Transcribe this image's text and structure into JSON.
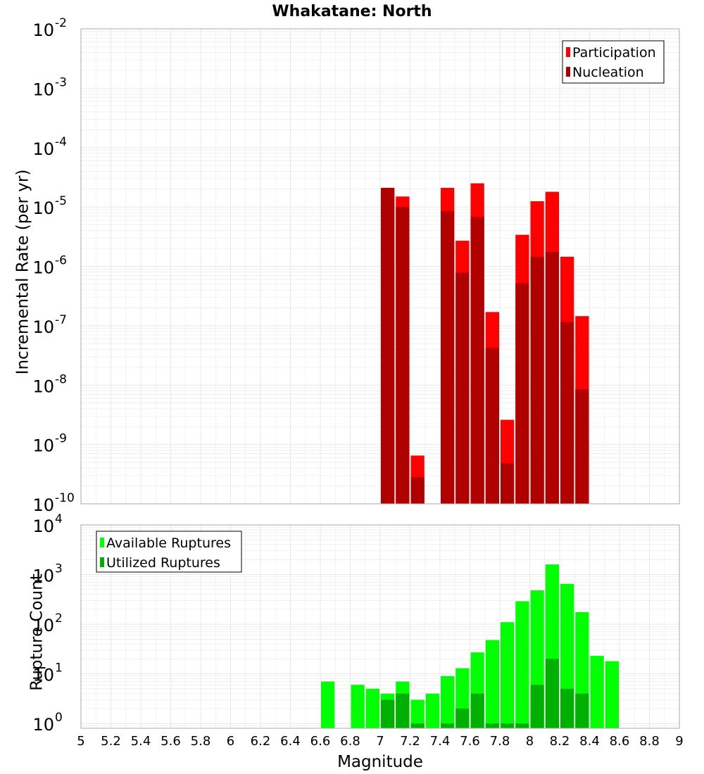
{
  "title": "Whakatane: North",
  "x_axis": {
    "label": "Magnitude",
    "range": [
      5,
      9
    ],
    "ticks": [
      "5",
      "5.2",
      "5.4",
      "5.6",
      "5.8",
      "6",
      "6.2",
      "6.4",
      "6.6",
      "6.8",
      "7",
      "7.2",
      "7.4",
      "7.6",
      "7.8",
      "8",
      "8.2",
      "8.4",
      "8.6",
      "8.8",
      "9"
    ]
  },
  "colors": {
    "participation": "#ff0000",
    "nucleation": "#b00000",
    "available": "#00ff00",
    "utilized": "#00b000",
    "grid": "#e8e8e8",
    "frame": "#aaaaaa"
  },
  "chart_data": [
    {
      "type": "bar",
      "ylabel": "Incremental Rate (per yr)",
      "yscale": "log",
      "ylim": [
        1e-10,
        0.01
      ],
      "y_ticks": [
        {
          "base": "10",
          "exp": "-10"
        },
        {
          "base": "10",
          "exp": "-9"
        },
        {
          "base": "10",
          "exp": "-8"
        },
        {
          "base": "10",
          "exp": "-7"
        },
        {
          "base": "10",
          "exp": "-6"
        },
        {
          "base": "10",
          "exp": "-5"
        },
        {
          "base": "10",
          "exp": "-4"
        },
        {
          "base": "10",
          "exp": "-3"
        },
        {
          "base": "10",
          "exp": "-2"
        }
      ],
      "legend_position": "top-right",
      "x": [
        7.05,
        7.15,
        7.25,
        7.35,
        7.45,
        7.55,
        7.65,
        7.75,
        7.85,
        7.95,
        8.05,
        8.15,
        8.25,
        8.35
      ],
      "series": [
        {
          "name": "Participation",
          "color_key": "participation",
          "values": [
            2.1e-05,
            1.5e-05,
            6.5e-10,
            null,
            2.1e-05,
            2.7e-06,
            2.5e-05,
            1.7e-07,
            2.6e-09,
            3.4e-06,
            1.25e-05,
            1.8e-05,
            1.45e-06,
            1.45e-07
          ]
        },
        {
          "name": "Nucleation",
          "color_key": "nucleation",
          "values": [
            2.1e-05,
            1e-05,
            2.8e-10,
            null,
            8.5e-06,
            7.8e-07,
            6.8e-06,
            4.2e-08,
            4.8e-10,
            5.2e-07,
            1.45e-06,
            1.75e-06,
            1.15e-07,
            8.5e-09
          ]
        }
      ]
    },
    {
      "type": "bar",
      "ylabel": "Rupture Count",
      "yscale": "log",
      "ylim": [
        0.8,
        10000
      ],
      "y_ticks": [
        {
          "base": "10",
          "exp": "0"
        },
        {
          "base": "10",
          "exp": "1"
        },
        {
          "base": "10",
          "exp": "2"
        },
        {
          "base": "10",
          "exp": "3"
        },
        {
          "base": "10",
          "exp": "4"
        }
      ],
      "legend_position": "top-left",
      "x": [
        6.65,
        6.75,
        6.85,
        6.95,
        7.05,
        7.15,
        7.25,
        7.35,
        7.45,
        7.55,
        7.65,
        7.75,
        7.85,
        7.95,
        8.05,
        8.15,
        8.25,
        8.35,
        8.45,
        8.55
      ],
      "series": [
        {
          "name": "Available Ruptures",
          "color_key": "available",
          "values": [
            7,
            null,
            6,
            5,
            4,
            7,
            3,
            4,
            9,
            13,
            27,
            48,
            110,
            290,
            480,
            1600,
            650,
            175,
            23,
            18
          ]
        },
        {
          "name": "Utilized Ruptures",
          "color_key": "utilized",
          "values": [
            null,
            null,
            null,
            null,
            3,
            4,
            1,
            null,
            1,
            2,
            4,
            1,
            1,
            1,
            6,
            20,
            5,
            4,
            null,
            null
          ]
        }
      ]
    }
  ]
}
